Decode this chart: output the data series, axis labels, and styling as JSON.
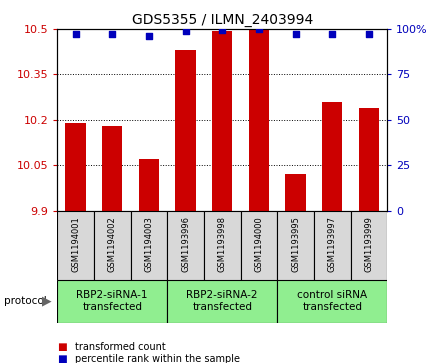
{
  "title": "GDS5355 / ILMN_2403994",
  "samples": [
    "GSM1194001",
    "GSM1194002",
    "GSM1194003",
    "GSM1193996",
    "GSM1193998",
    "GSM1194000",
    "GSM1193995",
    "GSM1193997",
    "GSM1193999"
  ],
  "bar_values": [
    10.19,
    10.18,
    10.07,
    10.43,
    10.495,
    10.5,
    10.02,
    10.26,
    10.24
  ],
  "dot_values": [
    97,
    97,
    96,
    99,
    99.5,
    100,
    97,
    97,
    97
  ],
  "bar_color": "#cc0000",
  "dot_color": "#0000bb",
  "ymin": 9.9,
  "ymax": 10.5,
  "y2min": 0,
  "y2max": 100,
  "yticks": [
    9.9,
    10.05,
    10.2,
    10.35,
    10.5
  ],
  "y2ticks": [
    0,
    25,
    50,
    75,
    100
  ],
  "groups": [
    {
      "label": "RBP2-siRNA-1\ntransfected",
      "start": 0,
      "end": 3,
      "color": "#90ee90"
    },
    {
      "label": "RBP2-siRNA-2\ntransfected",
      "start": 3,
      "end": 6,
      "color": "#90ee90"
    },
    {
      "label": "control siRNA\ntransfected",
      "start": 6,
      "end": 9,
      "color": "#90ee90"
    }
  ],
  "protocol_label": "protocol",
  "legend_bar_label": "transformed count",
  "legend_dot_label": "percentile rank within the sample",
  "background_color": "#ffffff",
  "plot_bg_color": "#ffffff",
  "sample_box_color": "#d8d8d8",
  "bar_width": 0.55
}
